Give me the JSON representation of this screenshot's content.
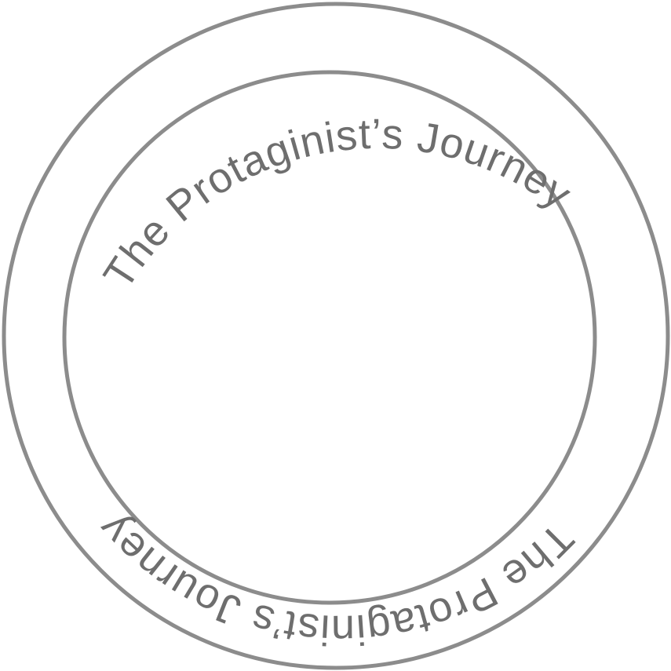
{
  "badge": {
    "top_text": "The Protaginist’s Journey",
    "bottom_text": "The Protaginist’s  Journey"
  },
  "colors": {
    "ring": "#8c8c8c",
    "text": "#6e6e6e",
    "background": "#ffffff"
  }
}
